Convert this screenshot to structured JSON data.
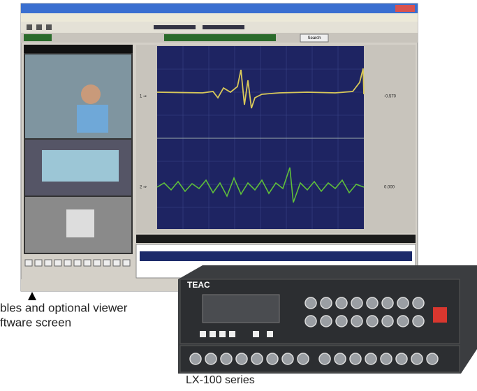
{
  "caption": {
    "lines": [
      "bles and optional viewer",
      "ftware screen"
    ]
  },
  "product": {
    "brand": "TEAC",
    "label": "LX-100 series"
  },
  "software": {
    "search_button": "Search",
    "readouts": [
      "-0.570",
      "0.000"
    ]
  }
}
